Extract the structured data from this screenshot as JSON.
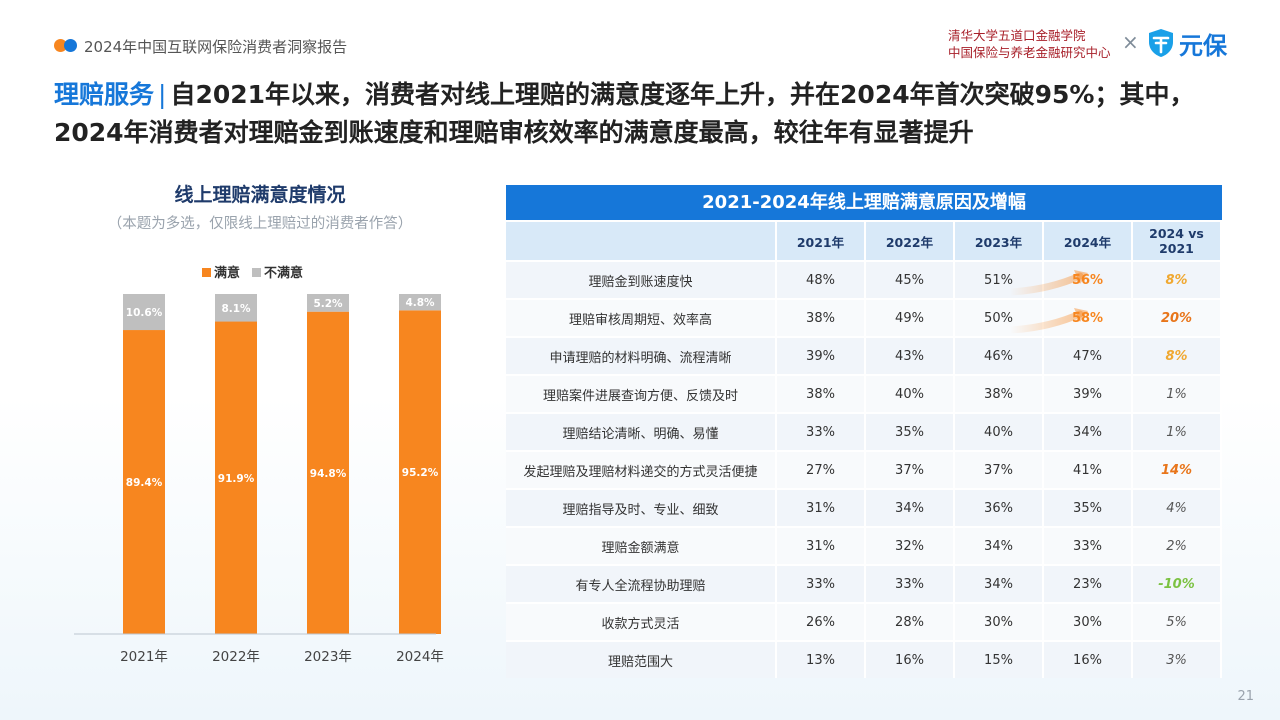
{
  "header": {
    "report_name": "2024年中国互联网保险消费者洞察报告",
    "org_line1": "清华大学五道口金融学院",
    "org_line2": "中国保险与养老金融研究中心",
    "times_sign": "×",
    "brand_name": "元保",
    "brand_icon": "shield-logo-icon"
  },
  "headline": {
    "tag": "理赔服务",
    "separator": "|",
    "text": "自2021年以来，消费者对线上理赔的满意度逐年上升，并在2024年首次突破95%；其中，2024年消费者对理赔金到账速度和理赔审核效率的满意度最高，较往年有显著提升"
  },
  "chart_data": {
    "type": "bar",
    "stacked": true,
    "percent_stacked": true,
    "title": "线上理赔满意度情况",
    "subtitle": "（本题为多选，仅限线上理赔过的消费者作答）",
    "categories": [
      "2021年",
      "2022年",
      "2023年",
      "2024年"
    ],
    "series": [
      {
        "name": "满意",
        "color": "#f7861f",
        "values": [
          89.4,
          91.9,
          94.8,
          95.2
        ],
        "labels": [
          "89.4%",
          "91.9%",
          "94.8%",
          "95.2%"
        ]
      },
      {
        "name": "不满意",
        "color": "#bfbfbf",
        "values": [
          10.6,
          8.1,
          5.2,
          4.8
        ],
        "labels": [
          "10.6%",
          "8.1%",
          "5.2%",
          "4.8%"
        ]
      }
    ],
    "ylim": [
      0,
      100
    ],
    "legend": "top-center",
    "grid": false
  },
  "table": {
    "title": "2021-2024年线上理赔满意原因及增幅",
    "headers": [
      "",
      "2021年",
      "2022年",
      "2023年",
      "2024年",
      "2024 vs 2021"
    ],
    "rows": [
      {
        "reason": "理赔金到账速度快",
        "values": [
          "48%",
          "45%",
          "51%",
          "56%"
        ],
        "growth": "8%",
        "growth_color": "#f0a830",
        "highlight_2024": true
      },
      {
        "reason": "理赔审核周期短、效率高",
        "values": [
          "38%",
          "49%",
          "50%",
          "58%"
        ],
        "growth": "20%",
        "growth_color": "#e8751a",
        "highlight_2024": true
      },
      {
        "reason": "申请理赔的材料明确、流程清晰",
        "values": [
          "39%",
          "43%",
          "46%",
          "47%"
        ],
        "growth": "8%",
        "growth_color": "#f0a830",
        "highlight_2024": false
      },
      {
        "reason": "理赔案件进展查询方便、反馈及时",
        "values": [
          "38%",
          "40%",
          "38%",
          "39%"
        ],
        "growth": "1%",
        "growth_color": "#555555",
        "highlight_2024": false
      },
      {
        "reason": "理赔结论清晰、明确、易懂",
        "values": [
          "33%",
          "35%",
          "40%",
          "34%"
        ],
        "growth": "1%",
        "growth_color": "#555555",
        "highlight_2024": false
      },
      {
        "reason": "发起理赔及理赔材料递交的方式灵活便捷",
        "values": [
          "27%",
          "37%",
          "37%",
          "41%"
        ],
        "growth": "14%",
        "growth_color": "#e8751a",
        "highlight_2024": false
      },
      {
        "reason": "理赔指导及时、专业、细致",
        "values": [
          "31%",
          "34%",
          "36%",
          "35%"
        ],
        "growth": "4%",
        "growth_color": "#555555",
        "highlight_2024": false
      },
      {
        "reason": "理赔金额满意",
        "values": [
          "31%",
          "32%",
          "34%",
          "33%"
        ],
        "growth": "2%",
        "growth_color": "#555555",
        "highlight_2024": false
      },
      {
        "reason": "有专人全流程协助理赔",
        "values": [
          "33%",
          "33%",
          "34%",
          "23%"
        ],
        "growth": "-10%",
        "growth_color": "#7cc242",
        "highlight_2024": false
      },
      {
        "reason": "收款方式灵活",
        "values": [
          "26%",
          "28%",
          "30%",
          "30%"
        ],
        "growth": "5%",
        "growth_color": "#555555",
        "highlight_2024": false
      },
      {
        "reason": "理赔范围大",
        "values": [
          "13%",
          "16%",
          "15%",
          "16%"
        ],
        "growth": "3%",
        "growth_color": "#555555",
        "highlight_2024": false
      }
    ]
  },
  "page_number": "21"
}
